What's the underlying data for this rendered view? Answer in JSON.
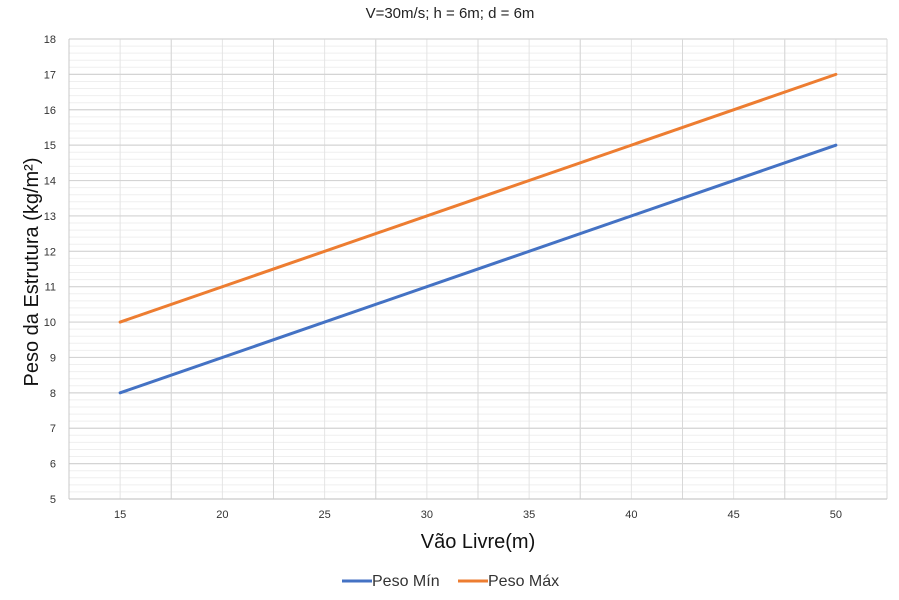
{
  "chart_data": {
    "type": "line",
    "title": "V=30m/s; h = 6m; d = 6m",
    "xlabel": "Vão Livre(m)",
    "ylabel": "Peso da Estrutura (kg/m²)",
    "x": [
      15,
      50
    ],
    "xlim": [
      12.5,
      52.5
    ],
    "ylim": [
      5,
      18
    ],
    "xticks": [
      "15",
      "20",
      "25",
      "30",
      "35",
      "40",
      "45",
      "50"
    ],
    "yticks": [
      "5",
      "6",
      "7",
      "8",
      "9",
      "10",
      "11",
      "12",
      "13",
      "14",
      "15",
      "16",
      "17",
      "18"
    ],
    "grid": true,
    "legend": "bottom",
    "series": [
      {
        "name": "Peso Mín",
        "values": [
          8,
          15
        ],
        "color": "#4472C4"
      },
      {
        "name": "Peso Máx",
        "values": [
          10,
          17
        ],
        "color": "#ED7D31"
      }
    ]
  }
}
